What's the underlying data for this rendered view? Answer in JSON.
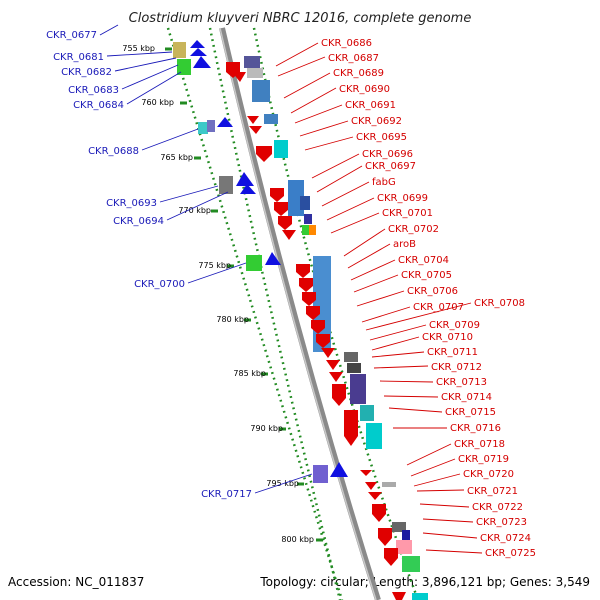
{
  "title": "Clostridium kluyveri NBRC 12016, complete genome",
  "footer": {
    "accession": "Accession: NC_011837",
    "topology": "Topology: circular; Length: 3,896,121 bp; Genes: 3,549"
  },
  "scale_labels": [
    "755 kbp",
    "760 kbp",
    "765 kbp",
    "770 kbp",
    "775 kbp",
    "780 kbp",
    "785 kbp",
    "790 kbp",
    "795 kbp",
    "800 kbp"
  ],
  "left_labels": [
    "CKR_0677",
    "CKR_0681",
    "CKR_0682",
    "CKR_0683",
    "CKR_0684",
    "CKR_0688",
    "CKR_0693",
    "CKR_0694",
    "CKR_0700",
    "CKR_0717"
  ],
  "right_labels": [
    "CKR_0686",
    "CKR_0687",
    "CKR_0689",
    "CKR_0690",
    "CKR_0691",
    "CKR_0692",
    "CKR_0695",
    "CKR_0696",
    "CKR_0697",
    "fabG",
    "CKR_0699",
    "CKR_0701",
    "CKR_0702",
    "aroB",
    "CKR_0704",
    "CKR_0705",
    "CKR_0706",
    "CKR_0707",
    "CKR_0708",
    "CKR_0709",
    "CKR_0710",
    "CKR_0711",
    "CKR_0712",
    "CKR_0713",
    "CKR_0714",
    "CKR_0715",
    "CKR_0716",
    "CKR_0718",
    "CKR_0719",
    "CKR_0720",
    "CKR_0721",
    "CKR_0722",
    "CKR_0723",
    "CKR_0724",
    "CKR_0725"
  ],
  "colors": {
    "backbone": "#8a8a8a",
    "dots": "#228b22",
    "forward_strand": "#1010e0",
    "reverse_strand": "#e00000",
    "blue_label": "#1a1ab8",
    "red_label": "#d40000"
  }
}
